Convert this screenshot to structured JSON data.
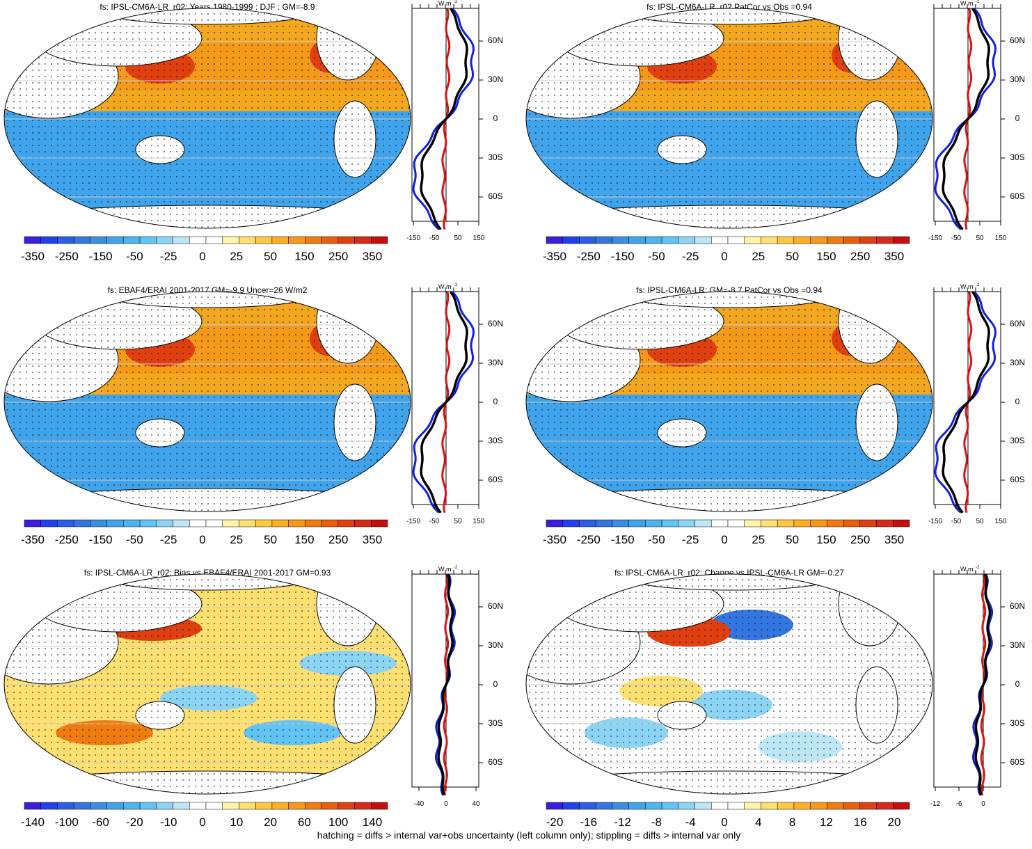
{
  "panels": [
    {
      "title": "fs: IPSL-CM6A-LR_r02: Years 1980-1999 : DJF : GM=-8.9",
      "units": "W m",
      "units_exp": "-2",
      "colorbar_labels": [
        "-350",
        "-250",
        "-150",
        "-50",
        "-25",
        "0",
        "25",
        "50",
        "150",
        "250",
        "350"
      ],
      "zonal_xticks": [
        "-150",
        "-50",
        "50",
        "150"
      ],
      "zonal_yticks": [
        "60N",
        "30N",
        "0",
        "30S",
        "60S"
      ]
    },
    {
      "title": "fs: IPSL-CM6A-LR_r02 PatCor vs Obs =0.94",
      "units": "W m",
      "units_exp": "-2",
      "colorbar_labels": [
        "-350",
        "-250",
        "-150",
        "-50",
        "-25",
        "0",
        "25",
        "50",
        "150",
        "250",
        "350"
      ],
      "zonal_xticks": [
        "-150",
        "-50",
        "50",
        "150"
      ],
      "zonal_yticks": [
        "60N",
        "30N",
        "0",
        "30S",
        "60S"
      ]
    },
    {
      "title": "fs: EBAF4/ERAI 2001-2017 GM=-9.9 Uncer=26 W/m2",
      "units": "W m",
      "units_exp": "-2",
      "colorbar_labels": [
        "-350",
        "-250",
        "-150",
        "-50",
        "-25",
        "0",
        "25",
        "50",
        "150",
        "250",
        "350"
      ],
      "zonal_xticks": [
        "-150",
        "-50",
        "50",
        "150"
      ],
      "zonal_yticks": [
        "60N",
        "30N",
        "0",
        "30S",
        "60S"
      ]
    },
    {
      "title": "fs: IPSL-CM6A-LR: GM=-8.7 PatCor vs Obs =0.94",
      "units": "W m",
      "units_exp": "-2",
      "colorbar_labels": [
        "-350",
        "-250",
        "-150",
        "-50",
        "-25",
        "0",
        "25",
        "50",
        "150",
        "250",
        "350"
      ],
      "zonal_xticks": [
        "-150",
        "-50",
        "50",
        "150"
      ],
      "zonal_yticks": [
        "60N",
        "30N",
        "0",
        "30S",
        "60S"
      ]
    },
    {
      "title": "fs: IPSL-CM6A-LR_r02: Bias vs EBAF4/ERAI 2001-2017 GM=0.93",
      "units": "W m",
      "units_exp": "-2",
      "colorbar_labels": [
        "-140",
        "-100",
        "-60",
        "-20",
        "-10",
        "0",
        "10",
        "20",
        "60",
        "100",
        "140"
      ],
      "zonal_xticks": [
        "-40",
        "0",
        "40"
      ],
      "zonal_yticks": [
        "60N",
        "30N",
        "0",
        "30S",
        "60S"
      ]
    },
    {
      "title": "fs: IPSL-CM6A-LR_r02: Change vs IPSL-CM6A-LR GM=-0.27",
      "units": "W m",
      "units_exp": "-2",
      "colorbar_labels": [
        "-20",
        "-16",
        "-12",
        "-8",
        "-4",
        "0",
        "4",
        "8",
        "12",
        "16",
        "20"
      ],
      "zonal_xticks": [
        "-12",
        "-6",
        "0"
      ],
      "zonal_yticks": [
        "60N",
        "30N",
        "0",
        "30S",
        "60S"
      ]
    }
  ],
  "footer": "hatching = diffs > internal var+obs uncertainty (left column only); stippling = diffs > internal var only"
}
